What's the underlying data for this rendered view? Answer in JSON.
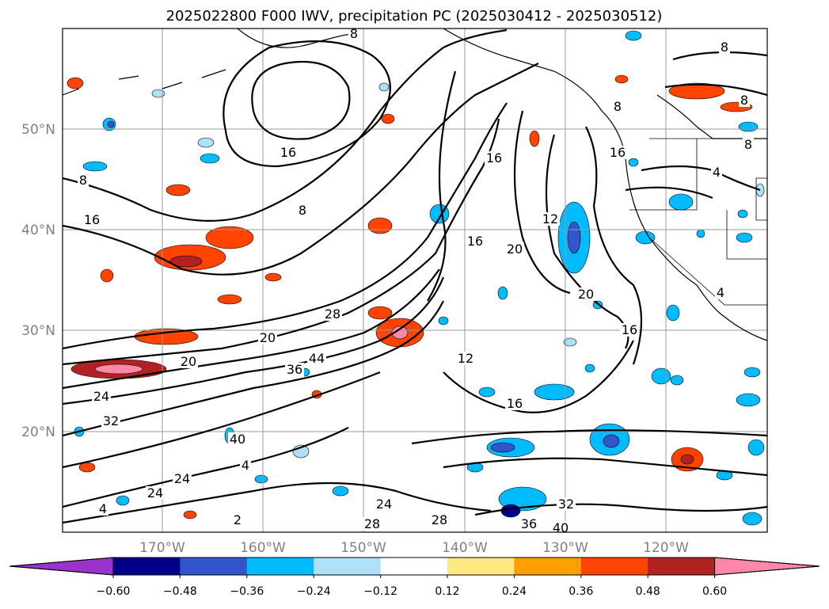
{
  "title": "2025022800 F000 IWV, precipitation PC (2025030412 - 2025030512)",
  "lat_ticks": [
    "50°N",
    "40°N",
    "30°N",
    "20°N"
  ],
  "lon_ticks": [
    "170°W",
    "160°W",
    "150°W",
    "140°W",
    "130°W",
    "120°W"
  ],
  "colorbar": {
    "colors": [
      "#9933cc",
      "#00008b",
      "#3355cc",
      "#00bbff",
      "#aee0f8",
      "#ffffff",
      "#ffe880",
      "#ffa000",
      "#ff4400",
      "#b22222",
      "#ff88aa"
    ],
    "ticks": [
      "−0.60",
      "−0.48",
      "−0.36",
      "−0.24",
      "−0.12",
      "0.12",
      "0.24",
      "0.36",
      "0.48",
      "0.60"
    ]
  },
  "contour_labels": [
    "8",
    "16",
    "8",
    "8",
    "16",
    "16",
    "16",
    "12",
    "8",
    "16",
    "4",
    "20",
    "20",
    "16",
    "12",
    "16",
    "20",
    "28",
    "20",
    "24",
    "32",
    "36",
    "44",
    "40",
    "4",
    "24",
    "24",
    "24",
    "28",
    "28",
    "36",
    "40",
    "32",
    "2",
    "8",
    "4",
    "8",
    "8",
    "4"
  ]
}
